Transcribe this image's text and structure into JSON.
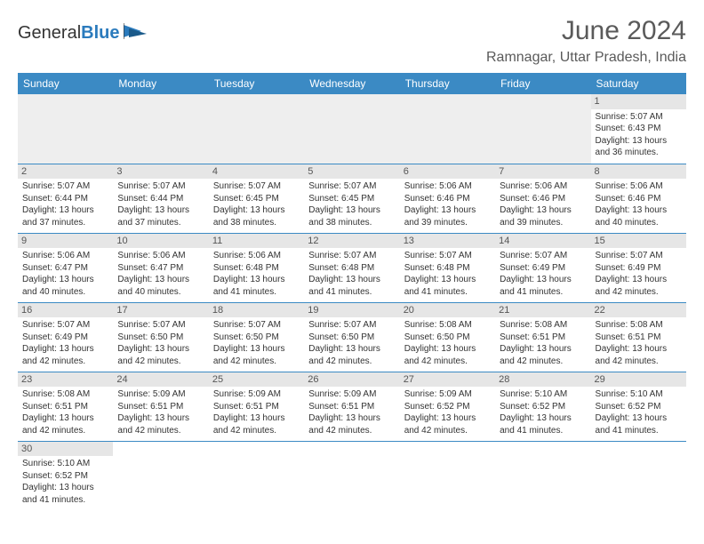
{
  "brand": {
    "name_part1": "General",
    "name_part2": "Blue"
  },
  "title": "June 2024",
  "location": "Ramnagar, Uttar Pradesh, India",
  "colors": {
    "header_bg": "#3b8ac4",
    "header_text": "#ffffff",
    "daynum_bg": "#e6e6e6",
    "row_border": "#3b8ac4",
    "filler_bg": "#eeeeee",
    "body_text": "#333333",
    "title_text": "#5a5a5a"
  },
  "weekdays": [
    "Sunday",
    "Monday",
    "Tuesday",
    "Wednesday",
    "Thursday",
    "Friday",
    "Saturday"
  ],
  "weeks": [
    [
      {
        "blank": true,
        "filler": true
      },
      {
        "blank": true,
        "filler": true
      },
      {
        "blank": true,
        "filler": true
      },
      {
        "blank": true,
        "filler": true
      },
      {
        "blank": true,
        "filler": true
      },
      {
        "blank": true,
        "filler": true
      },
      {
        "day": 1,
        "sunrise": "Sunrise: 5:07 AM",
        "sunset": "Sunset: 6:43 PM",
        "daylight1": "Daylight: 13 hours",
        "daylight2": "and 36 minutes."
      }
    ],
    [
      {
        "day": 2,
        "sunrise": "Sunrise: 5:07 AM",
        "sunset": "Sunset: 6:44 PM",
        "daylight1": "Daylight: 13 hours",
        "daylight2": "and 37 minutes."
      },
      {
        "day": 3,
        "sunrise": "Sunrise: 5:07 AM",
        "sunset": "Sunset: 6:44 PM",
        "daylight1": "Daylight: 13 hours",
        "daylight2": "and 37 minutes."
      },
      {
        "day": 4,
        "sunrise": "Sunrise: 5:07 AM",
        "sunset": "Sunset: 6:45 PM",
        "daylight1": "Daylight: 13 hours",
        "daylight2": "and 38 minutes."
      },
      {
        "day": 5,
        "sunrise": "Sunrise: 5:07 AM",
        "sunset": "Sunset: 6:45 PM",
        "daylight1": "Daylight: 13 hours",
        "daylight2": "and 38 minutes."
      },
      {
        "day": 6,
        "sunrise": "Sunrise: 5:06 AM",
        "sunset": "Sunset: 6:46 PM",
        "daylight1": "Daylight: 13 hours",
        "daylight2": "and 39 minutes."
      },
      {
        "day": 7,
        "sunrise": "Sunrise: 5:06 AM",
        "sunset": "Sunset: 6:46 PM",
        "daylight1": "Daylight: 13 hours",
        "daylight2": "and 39 minutes."
      },
      {
        "day": 8,
        "sunrise": "Sunrise: 5:06 AM",
        "sunset": "Sunset: 6:46 PM",
        "daylight1": "Daylight: 13 hours",
        "daylight2": "and 40 minutes."
      }
    ],
    [
      {
        "day": 9,
        "sunrise": "Sunrise: 5:06 AM",
        "sunset": "Sunset: 6:47 PM",
        "daylight1": "Daylight: 13 hours",
        "daylight2": "and 40 minutes."
      },
      {
        "day": 10,
        "sunrise": "Sunrise: 5:06 AM",
        "sunset": "Sunset: 6:47 PM",
        "daylight1": "Daylight: 13 hours",
        "daylight2": "and 40 minutes."
      },
      {
        "day": 11,
        "sunrise": "Sunrise: 5:06 AM",
        "sunset": "Sunset: 6:48 PM",
        "daylight1": "Daylight: 13 hours",
        "daylight2": "and 41 minutes."
      },
      {
        "day": 12,
        "sunrise": "Sunrise: 5:07 AM",
        "sunset": "Sunset: 6:48 PM",
        "daylight1": "Daylight: 13 hours",
        "daylight2": "and 41 minutes."
      },
      {
        "day": 13,
        "sunrise": "Sunrise: 5:07 AM",
        "sunset": "Sunset: 6:48 PM",
        "daylight1": "Daylight: 13 hours",
        "daylight2": "and 41 minutes."
      },
      {
        "day": 14,
        "sunrise": "Sunrise: 5:07 AM",
        "sunset": "Sunset: 6:49 PM",
        "daylight1": "Daylight: 13 hours",
        "daylight2": "and 41 minutes."
      },
      {
        "day": 15,
        "sunrise": "Sunrise: 5:07 AM",
        "sunset": "Sunset: 6:49 PM",
        "daylight1": "Daylight: 13 hours",
        "daylight2": "and 42 minutes."
      }
    ],
    [
      {
        "day": 16,
        "sunrise": "Sunrise: 5:07 AM",
        "sunset": "Sunset: 6:49 PM",
        "daylight1": "Daylight: 13 hours",
        "daylight2": "and 42 minutes."
      },
      {
        "day": 17,
        "sunrise": "Sunrise: 5:07 AM",
        "sunset": "Sunset: 6:50 PM",
        "daylight1": "Daylight: 13 hours",
        "daylight2": "and 42 minutes."
      },
      {
        "day": 18,
        "sunrise": "Sunrise: 5:07 AM",
        "sunset": "Sunset: 6:50 PM",
        "daylight1": "Daylight: 13 hours",
        "daylight2": "and 42 minutes."
      },
      {
        "day": 19,
        "sunrise": "Sunrise: 5:07 AM",
        "sunset": "Sunset: 6:50 PM",
        "daylight1": "Daylight: 13 hours",
        "daylight2": "and 42 minutes."
      },
      {
        "day": 20,
        "sunrise": "Sunrise: 5:08 AM",
        "sunset": "Sunset: 6:50 PM",
        "daylight1": "Daylight: 13 hours",
        "daylight2": "and 42 minutes."
      },
      {
        "day": 21,
        "sunrise": "Sunrise: 5:08 AM",
        "sunset": "Sunset: 6:51 PM",
        "daylight1": "Daylight: 13 hours",
        "daylight2": "and 42 minutes."
      },
      {
        "day": 22,
        "sunrise": "Sunrise: 5:08 AM",
        "sunset": "Sunset: 6:51 PM",
        "daylight1": "Daylight: 13 hours",
        "daylight2": "and 42 minutes."
      }
    ],
    [
      {
        "day": 23,
        "sunrise": "Sunrise: 5:08 AM",
        "sunset": "Sunset: 6:51 PM",
        "daylight1": "Daylight: 13 hours",
        "daylight2": "and 42 minutes."
      },
      {
        "day": 24,
        "sunrise": "Sunrise: 5:09 AM",
        "sunset": "Sunset: 6:51 PM",
        "daylight1": "Daylight: 13 hours",
        "daylight2": "and 42 minutes."
      },
      {
        "day": 25,
        "sunrise": "Sunrise: 5:09 AM",
        "sunset": "Sunset: 6:51 PM",
        "daylight1": "Daylight: 13 hours",
        "daylight2": "and 42 minutes."
      },
      {
        "day": 26,
        "sunrise": "Sunrise: 5:09 AM",
        "sunset": "Sunset: 6:51 PM",
        "daylight1": "Daylight: 13 hours",
        "daylight2": "and 42 minutes."
      },
      {
        "day": 27,
        "sunrise": "Sunrise: 5:09 AM",
        "sunset": "Sunset: 6:52 PM",
        "daylight1": "Daylight: 13 hours",
        "daylight2": "and 42 minutes."
      },
      {
        "day": 28,
        "sunrise": "Sunrise: 5:10 AM",
        "sunset": "Sunset: 6:52 PM",
        "daylight1": "Daylight: 13 hours",
        "daylight2": "and 41 minutes."
      },
      {
        "day": 29,
        "sunrise": "Sunrise: 5:10 AM",
        "sunset": "Sunset: 6:52 PM",
        "daylight1": "Daylight: 13 hours",
        "daylight2": "and 41 minutes."
      }
    ],
    [
      {
        "day": 30,
        "sunrise": "Sunrise: 5:10 AM",
        "sunset": "Sunset: 6:52 PM",
        "daylight1": "Daylight: 13 hours",
        "daylight2": "and 41 minutes."
      },
      {
        "blank": true
      },
      {
        "blank": true
      },
      {
        "blank": true
      },
      {
        "blank": true
      },
      {
        "blank": true
      },
      {
        "blank": true
      }
    ]
  ]
}
